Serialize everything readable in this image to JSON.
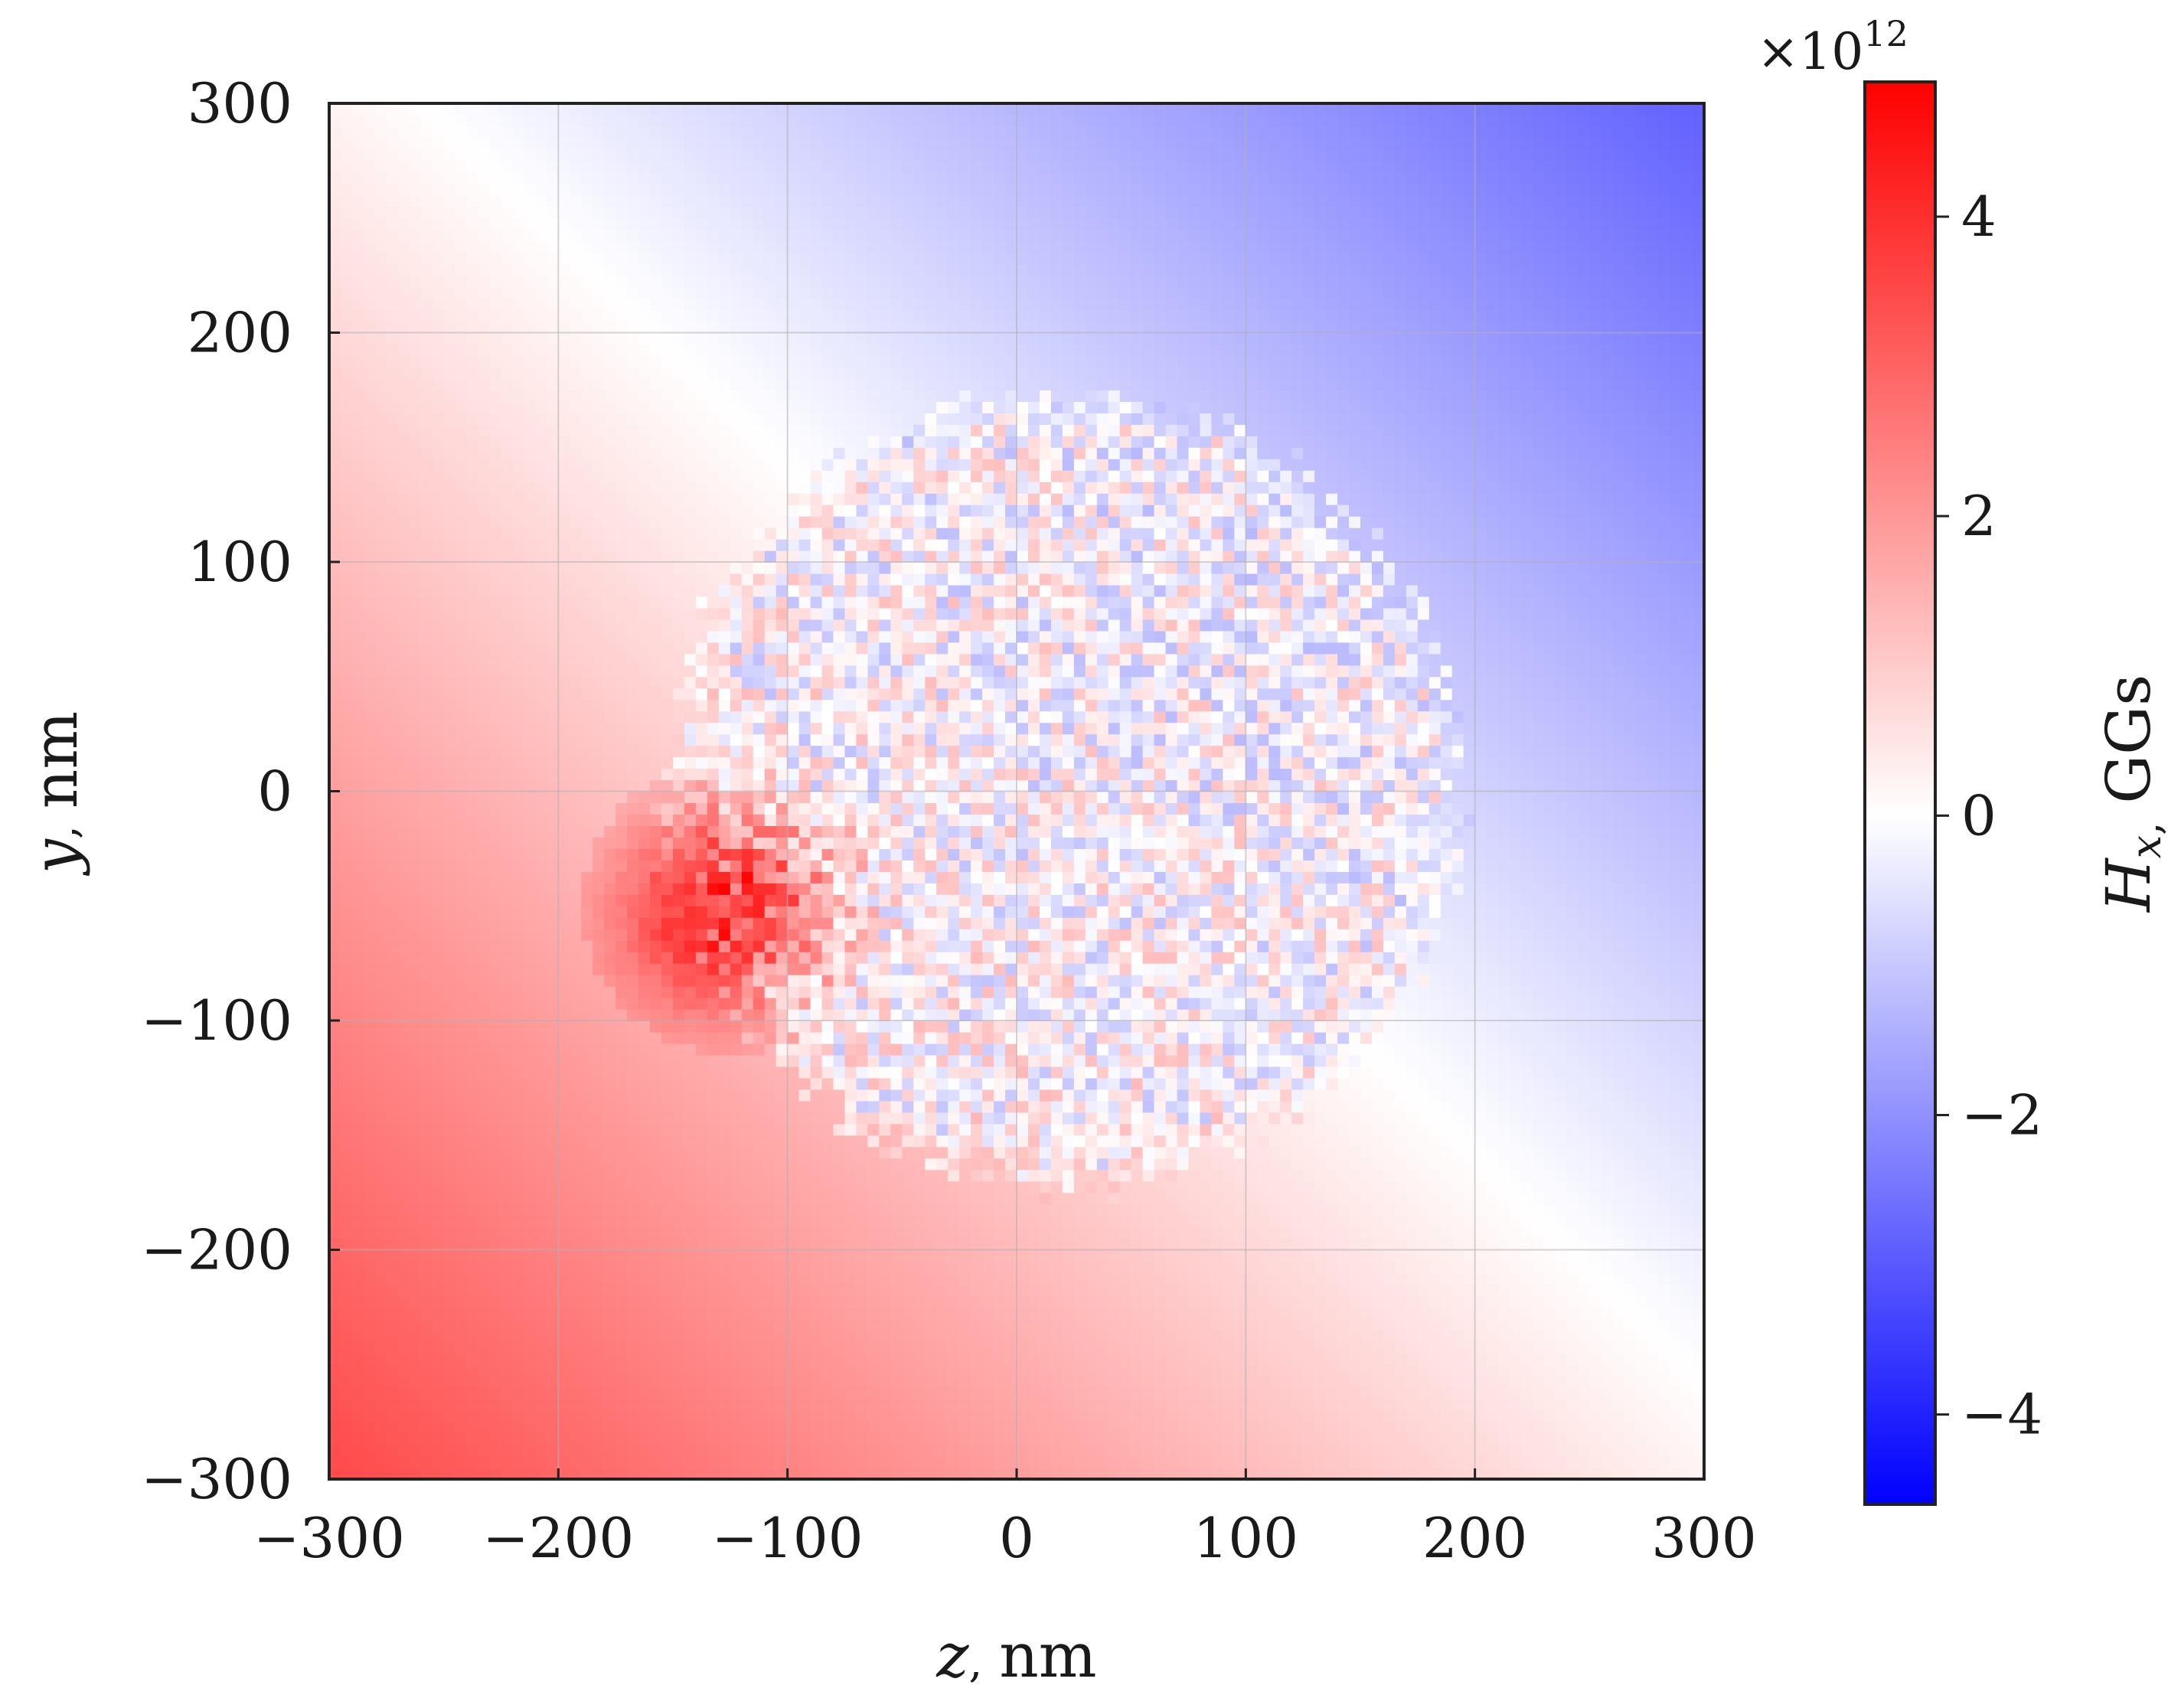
{
  "chart_data": {
    "type": "heatmap",
    "title": "",
    "xlabel": {
      "var": "z",
      "sep": ",",
      "unit": "nm"
    },
    "ylabel": {
      "var": "y",
      "sep": ",",
      "unit": "nm"
    },
    "xlim": [
      -300,
      300
    ],
    "ylim": [
      -300,
      300
    ],
    "x_ticks": [
      -300,
      -200,
      -100,
      0,
      100,
      200,
      300
    ],
    "y_ticks": [
      -300,
      -200,
      -100,
      0,
      100,
      200,
      300
    ],
    "x_tick_labels": [
      "−300",
      "−200",
      "−100",
      "0",
      "100",
      "200",
      "300"
    ],
    "y_tick_labels": [
      "−300",
      "−200",
      "−100",
      "0",
      "100",
      "200",
      "300"
    ],
    "grid": true,
    "colormap": {
      "name": "bwr",
      "low": "#0000ff",
      "mid": "#ffffff",
      "high": "#ff0000"
    },
    "colorbar": {
      "label_var": "H",
      "label_sub": "x",
      "label_sep": ",",
      "label_unit": "GGs",
      "multiplier_prefix": "×10",
      "multiplier_exp": "12",
      "vmin": -4.6,
      "vmax": 4.9,
      "ticks": [
        -4,
        -2,
        0,
        2,
        4
      ],
      "tick_labels": [
        "−4",
        "−2",
        "0",
        "2",
        "4"
      ]
    },
    "field_model": {
      "description_free": true,
      "background_gradient_per_nm": 0.0071,
      "gradient_direction": [
        -1,
        -1
      ],
      "zero_line_offset_nm": -30,
      "max_abs": 4.6,
      "inner_region": {
        "center": [
          20,
          0
        ],
        "radius_nm": 160,
        "inner_amplitude": 1.0,
        "noise_amplitude": 1.2
      },
      "hotspot": {
        "center": [
          -125,
          -50
        ],
        "radius_nm": 40,
        "amplitude": 3.4
      }
    }
  }
}
